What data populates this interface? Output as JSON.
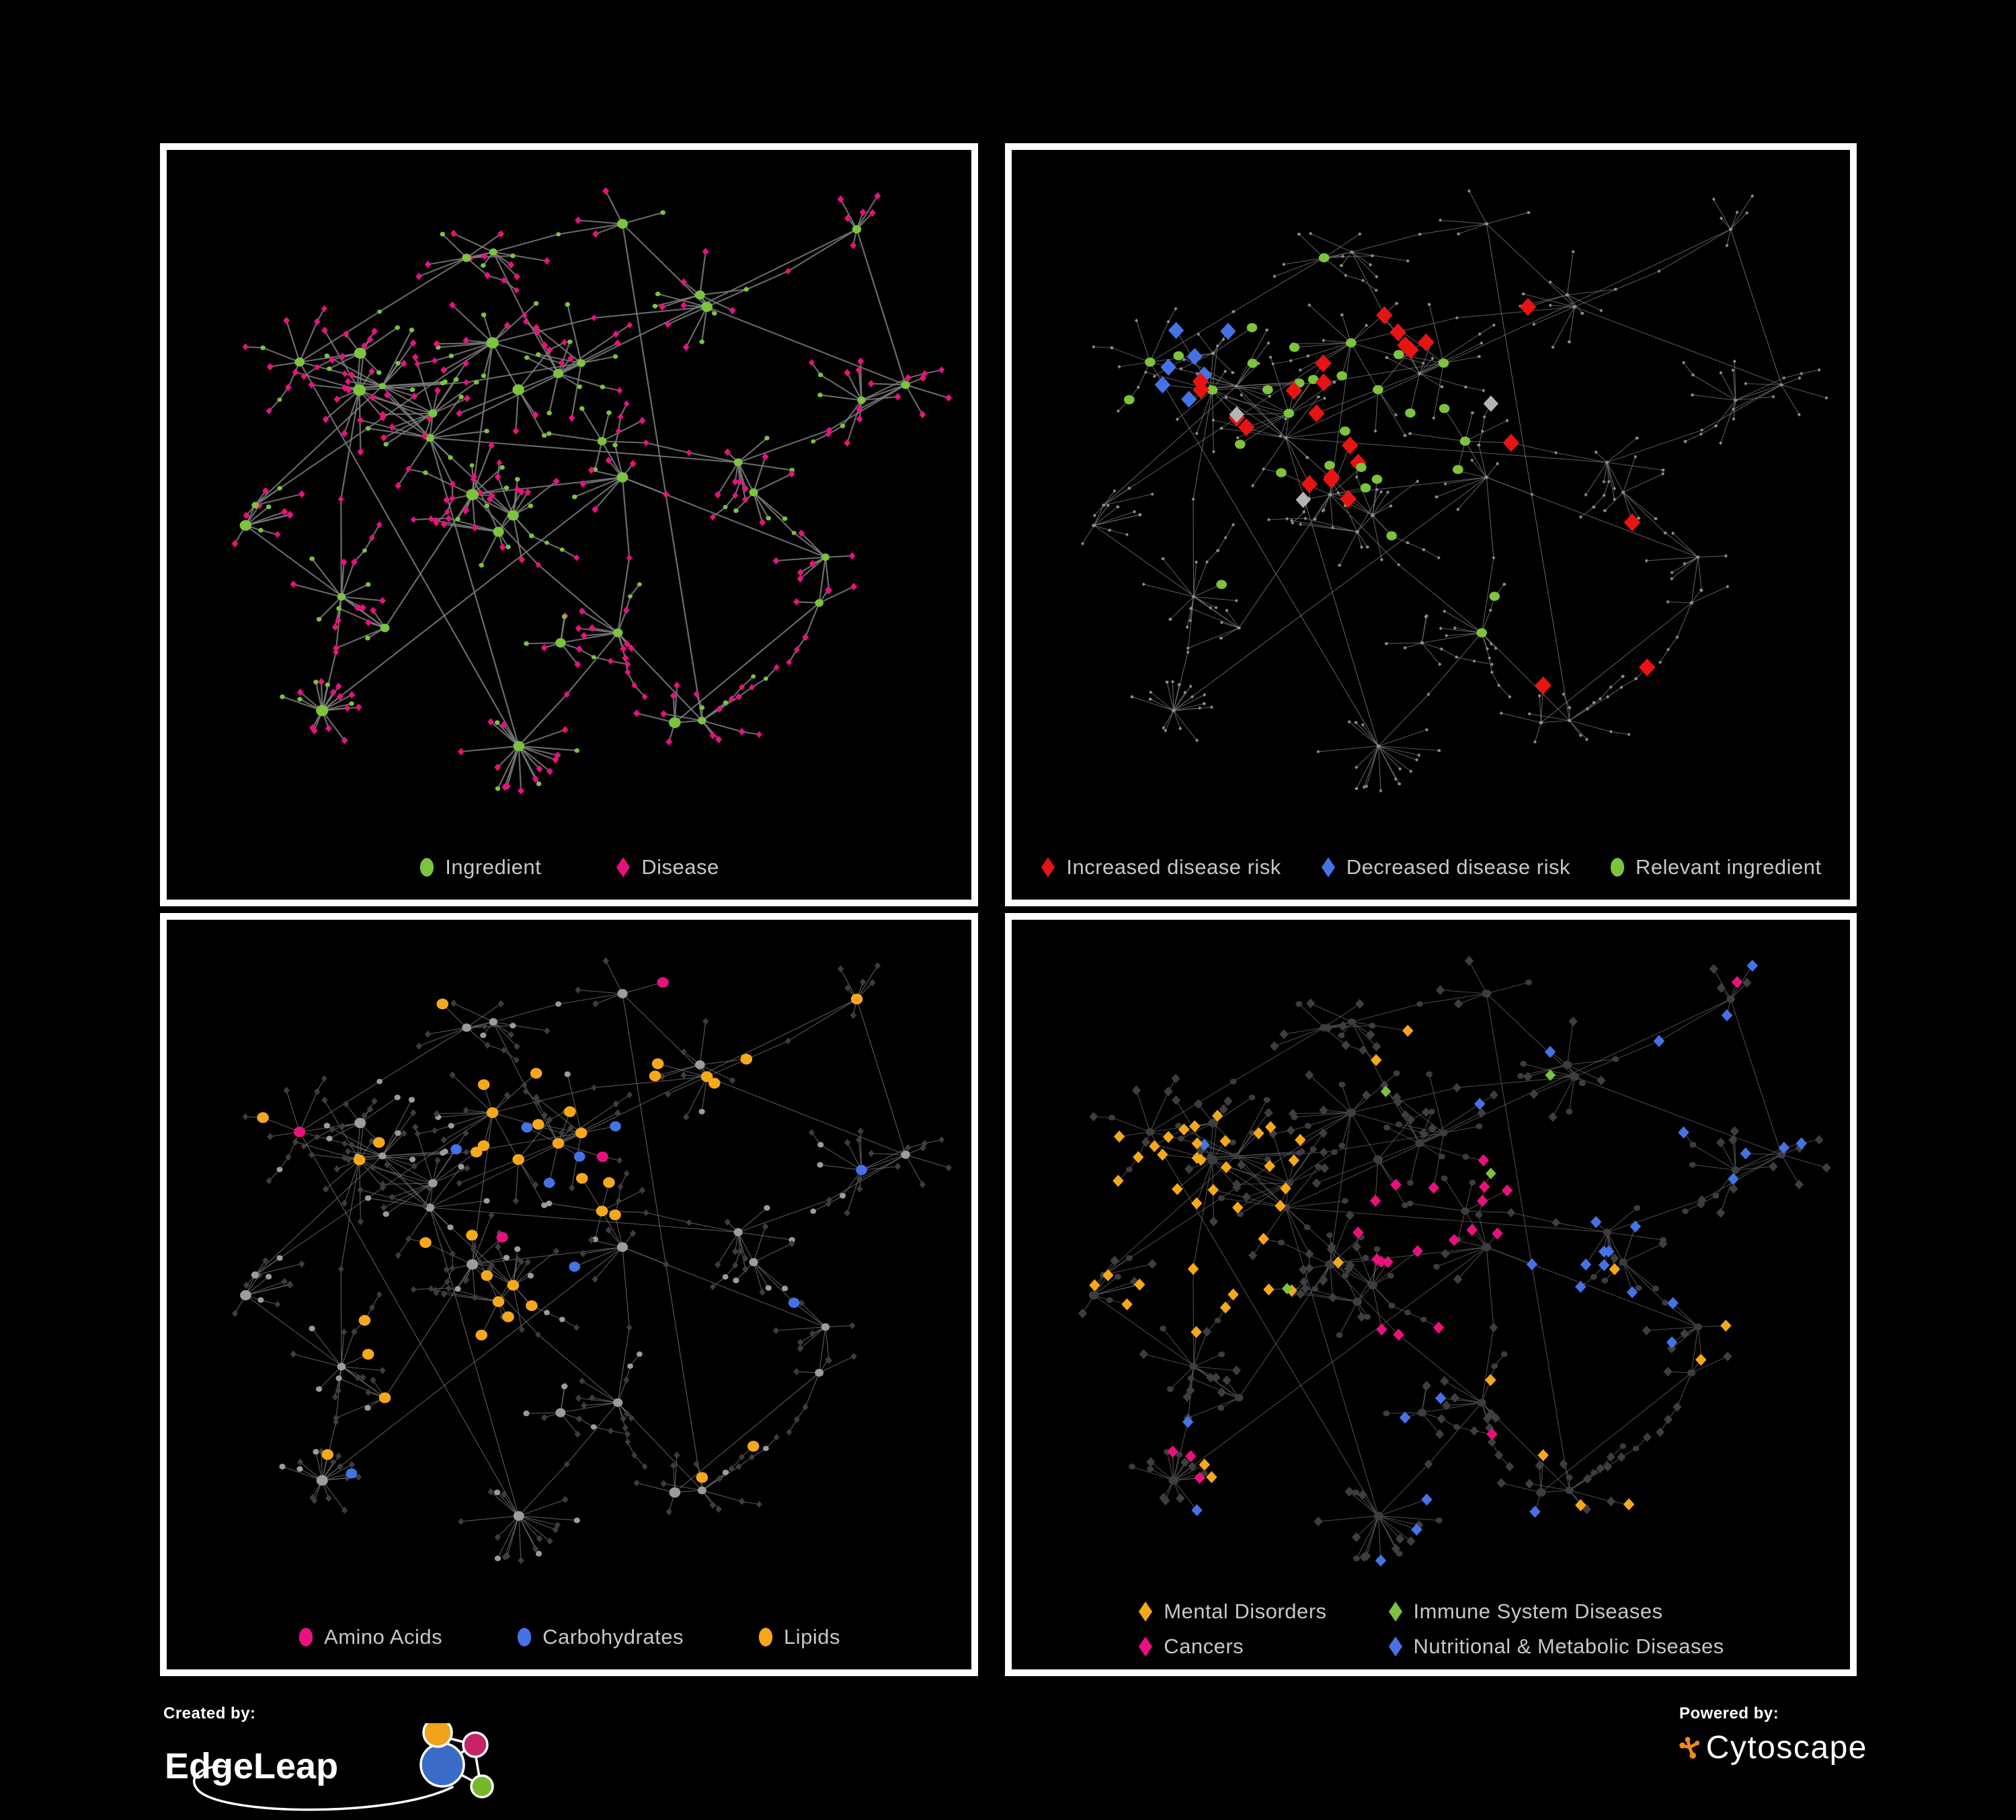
{
  "colors": {
    "background": "#000000",
    "panel_border": "#ffffff",
    "legend_text": "#c7c7c7",
    "green": "#7cc33e",
    "pink": "#e9117e",
    "red": "#e81414",
    "blue": "#4572e5",
    "orange": "#f6a81c",
    "gray_highlight": "#b5b5b5",
    "cytoscape_orange": "#ef8a1c"
  },
  "footer": {
    "created_by": {
      "label": "Created by:",
      "brand": "EdgeLeap"
    },
    "powered_by": {
      "label": "Powered by:",
      "brand": "Cytoscape"
    }
  },
  "panels": [
    {
      "name": "ingredient-disease-network",
      "legend": {
        "rows": 1,
        "items": [
          {
            "shape": "ellipse",
            "color": "#7cc33e",
            "label": "Ingredient"
          },
          {
            "shape": "diamond",
            "color": "#e9117e",
            "label": "Disease"
          }
        ]
      }
    },
    {
      "name": "disease-risk-network",
      "legend": {
        "rows": 1,
        "items": [
          {
            "shape": "diamond",
            "color": "#e81414",
            "label": "Increased disease risk"
          },
          {
            "shape": "diamond",
            "color": "#4572e5",
            "label": "Decreased disease risk"
          },
          {
            "shape": "ellipse",
            "color": "#7cc33e",
            "label": "Relevant ingredient"
          }
        ]
      }
    },
    {
      "name": "nutrient-class-network",
      "legend": {
        "rows": 1,
        "items": [
          {
            "shape": "ellipse",
            "color": "#e9117e",
            "label": "Amino Acids"
          },
          {
            "shape": "ellipse",
            "color": "#4572e5",
            "label": "Carbohydrates"
          },
          {
            "shape": "ellipse",
            "color": "#f6a81c",
            "label": "Lipids"
          }
        ]
      }
    },
    {
      "name": "disease-class-network",
      "legend": {
        "rows": 2,
        "items": [
          {
            "shape": "diamond",
            "color": "#f6a81c",
            "label": "Mental Disorders"
          },
          {
            "shape": "diamond",
            "color": "#7cc33e",
            "label": "Immune System Diseases"
          },
          {
            "shape": "diamond",
            "color": "#e9117e",
            "label": "Cancers"
          },
          {
            "shape": "diamond",
            "color": "#4572e5",
            "label": "Nutritional & Metabolic Diseases"
          }
        ]
      }
    }
  ],
  "network": {
    "seed": 7,
    "clusters": [
      [
        0.3,
        0.4,
        4,
        9,
        0.075,
        0
      ],
      [
        0.46,
        0.33,
        4,
        8,
        0.07,
        0
      ],
      [
        0.42,
        0.52,
        3,
        8,
        0.06,
        0
      ],
      [
        0.58,
        0.46,
        2,
        7,
        0.05,
        0
      ],
      [
        0.2,
        0.3,
        2,
        7,
        0.05,
        0
      ],
      [
        0.13,
        0.52,
        2,
        6,
        0.048,
        0
      ],
      [
        0.25,
        0.68,
        2,
        8,
        0.055,
        0
      ],
      [
        0.4,
        0.13,
        2,
        5,
        0.05,
        0
      ],
      [
        0.56,
        0.09,
        1,
        5,
        0.042,
        0
      ],
      [
        0.7,
        0.22,
        2,
        6,
        0.05,
        0
      ],
      [
        0.84,
        0.14,
        1,
        5,
        0.045,
        0
      ],
      [
        0.88,
        0.36,
        2,
        8,
        0.05,
        0
      ],
      [
        0.72,
        0.48,
        2,
        7,
        0.05,
        0
      ],
      [
        0.52,
        0.7,
        2,
        7,
        0.05,
        0
      ],
      [
        0.47,
        0.87,
        1,
        22,
        0.058,
        1
      ],
      [
        0.17,
        0.84,
        1,
        12,
        0.05,
        1
      ],
      [
        0.66,
        0.81,
        2,
        6,
        0.05,
        0
      ],
      [
        0.81,
        0.63,
        2,
        6,
        0.048,
        0
      ]
    ],
    "links": [
      [
        0,
        1
      ],
      [
        1,
        2
      ],
      [
        0,
        2
      ],
      [
        2,
        3
      ],
      [
        0,
        4
      ],
      [
        4,
        7
      ],
      [
        7,
        8
      ],
      [
        8,
        9
      ],
      [
        9,
        10
      ],
      [
        10,
        11
      ],
      [
        9,
        11
      ],
      [
        11,
        12
      ],
      [
        3,
        12
      ],
      [
        0,
        5
      ],
      [
        5,
        6
      ],
      [
        6,
        15
      ],
      [
        2,
        13
      ],
      [
        13,
        14
      ],
      [
        13,
        16
      ],
      [
        12,
        17
      ],
      [
        16,
        17
      ],
      [
        1,
        7
      ],
      [
        3,
        13
      ],
      [
        2,
        6
      ],
      [
        1,
        9
      ],
      [
        3,
        17
      ],
      [
        0,
        6
      ]
    ],
    "styles": [
      {
        "seed": 11,
        "edge": "#7d7d7d",
        "edgeWidth": 1.9,
        "edgeOpacity": 0.85,
        "hubScale": 1,
        "base": {
          "circle": {
            "color": "#7cc33e",
            "r": 3.2
          },
          "diamond": {
            "color": "#e9117e",
            "r": 4.6
          }
        },
        "rules": []
      },
      {
        "seed": 23,
        "edge": "#747474",
        "edgeWidth": 0.9,
        "edgeOpacity": 0.8,
        "hubScale": 0.15,
        "base": {
          "circle": {
            "color": "#8d8d8d",
            "r": 2.0
          },
          "diamond": {
            "color": "#8d8d8d",
            "r": 2.3
          }
        },
        "rules": [
          {
            "shape": "diamond",
            "color": "#e81414",
            "size": 11,
            "zones": [
              [
                0.33,
                0.62,
                0.22,
                0.52,
                0.3
              ],
              [
                0.6,
                0.78,
                0.52,
                0.7,
                0.3
              ],
              [
                0.18,
                0.3,
                0.25,
                0.42,
                0.1
              ],
              [
                0.62,
                0.8,
                0.72,
                0.85,
                0.12
              ]
            ]
          },
          {
            "shape": "diamond",
            "color": "#4572e5",
            "size": 10.5,
            "zones": [
              [
                0.16,
                0.3,
                0.25,
                0.46,
                0.3
              ],
              [
                0.8,
                0.95,
                0.1,
                0.3,
                0.3
              ]
            ]
          },
          {
            "shape": "diamond",
            "color": "#b5b5b5",
            "size": 10,
            "zones": [
              [
                0.22,
                0.62,
                0.26,
                0.56,
                0.05
              ],
              [
                0.6,
                0.76,
                0.55,
                0.7,
                0.1
              ]
            ]
          },
          {
            "shape": "circle",
            "color": "#7cc33e",
            "size": 6.3,
            "zones": [
              [
                0.15,
                0.62,
                0.24,
                0.56,
                0.4
              ],
              [
                0.56,
                0.78,
                0.52,
                0.74,
                0.25
              ],
              [
                0.0,
                1.0,
                0.0,
                1.0,
                0.02
              ]
            ]
          }
        ]
      },
      {
        "seed": 37,
        "edge": "#787878",
        "edgeWidth": 1.0,
        "edgeOpacity": 0.72,
        "hubScale": 0.6,
        "base": {
          "circle": {
            "color": "#9c9c9c",
            "r": 3.9
          },
          "diamond": {
            "color": "#3d3d3d",
            "r": 4.4
          }
        },
        "rules": [
          {
            "shape": "circle",
            "color": "#e9117e",
            "size": 7.2,
            "zones": [
              [
                0.0,
                1.0,
                0.0,
                1.0,
                0.065
              ]
            ]
          },
          {
            "shape": "circle",
            "color": "#4572e5",
            "size": 7.0,
            "zones": [
              [
                0.42,
                0.62,
                0.2,
                0.4,
                0.25
              ],
              [
                0.0,
                1.0,
                0.0,
                1.0,
                0.03
              ]
            ]
          },
          {
            "shape": "circle",
            "color": "#f6a81c",
            "size": 7.4,
            "zones": [
              [
                0.36,
                0.62,
                0.2,
                0.44,
                0.75
              ],
              [
                0.3,
                0.52,
                0.44,
                0.62,
                0.4
              ],
              [
                0.0,
                1.0,
                0.0,
                1.0,
                0.1
              ]
            ]
          }
        ]
      },
      {
        "seed": 53,
        "edge": "#6a6a6a",
        "edgeWidth": 1.0,
        "edgeOpacity": 0.65,
        "hubScale": 0.35,
        "base": {
          "circle": {
            "color": "#3d3d3d",
            "r": 4.0
          },
          "diamond": {
            "color": "#3e3e3e",
            "r": 6.0
          }
        },
        "rules": [
          {
            "shape": "diamond",
            "color": "#7cc33e",
            "size": 7.0,
            "zones": [
              [
                0.3,
                0.7,
                0.2,
                0.7,
                0.03
              ]
            ]
          },
          {
            "shape": "diamond",
            "color": "#f6a81c",
            "size": 7.4,
            "zones": [
              [
                0.05,
                0.33,
                0.28,
                0.62,
                0.75
              ],
              [
                0.25,
                0.48,
                0.04,
                0.22,
                0.3
              ],
              [
                0.0,
                1.0,
                0.0,
                1.0,
                0.03
              ]
            ]
          },
          {
            "shape": "diamond",
            "color": "#e9117e",
            "size": 7.4,
            "zones": [
              [
                0.38,
                0.62,
                0.35,
                0.68,
                0.5
              ],
              [
                0.08,
                0.28,
                0.76,
                0.96,
                0.25
              ],
              [
                0.0,
                1.0,
                0.0,
                1.0,
                0.035
              ]
            ]
          },
          {
            "shape": "diamond",
            "color": "#4572e5",
            "size": 7.4,
            "zones": [
              [
                0.6,
                0.8,
                0.4,
                0.66,
                0.5
              ],
              [
                0.68,
                0.95,
                0.06,
                0.4,
                0.4
              ],
              [
                0.28,
                0.56,
                0.7,
                0.96,
                0.15
              ],
              [
                0.0,
                1.0,
                0.0,
                1.0,
                0.05
              ]
            ]
          }
        ]
      }
    ]
  }
}
